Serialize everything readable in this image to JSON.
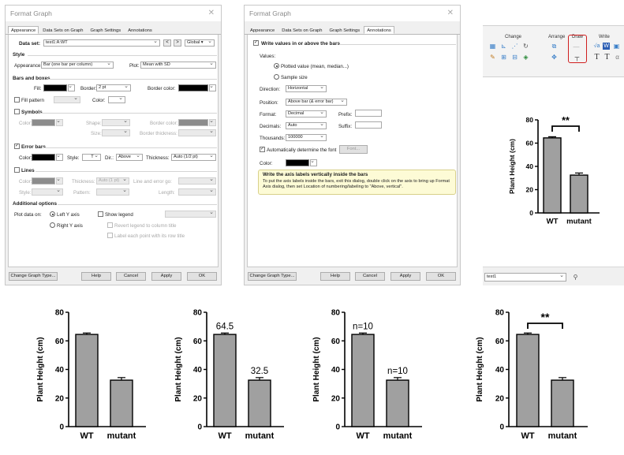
{
  "dialog1": {
    "title": "Format Graph",
    "tabs": [
      "Appearance",
      "Data Sets on Graph",
      "Graph Settings",
      "Annotations"
    ],
    "data_set_label": "Data set:",
    "data_set_value": "test1:A:WT",
    "nav_prev": "<",
    "nav_next": ">",
    "global_label": "Global ▾",
    "style_header": "Style",
    "appearance_label": "Appearance:",
    "appearance_value": "Bar (one bar per column)",
    "plot_label": "Plot:",
    "plot_value": "Mean with SD",
    "bars_header": "Bars and boxes",
    "fill_label": "Fill:",
    "border_label": "Border:",
    "border_value": "2 pt",
    "border_color_label": "Border color:",
    "fill_pattern_label": "Fill pattern",
    "color_label": "Color:",
    "symbols_label": "Symbols",
    "symbols_color_label": "Color:",
    "shape_label": "Shape:",
    "symbols_border_color_label": "Border color:",
    "size_label": "Size:",
    "border_thickness_label": "Border thickness:",
    "error_bars_label": "Error bars",
    "eb_color_label": "Color:",
    "eb_style_label": "Style:",
    "eb_style_value": "T",
    "eb_dir_label": "Dir.:",
    "eb_dir_value": "Above",
    "eb_thickness_label": "Thickness:",
    "eb_thickness_value": "Auto (1/2 pt)",
    "lines_label": "Lines",
    "lines_color_label": "Color:",
    "lines_thickness_label": "Thickness:",
    "lines_thickness_value": "Auto (1 pt)",
    "line_error_label": "Line and error go:",
    "lines_style_label": "Style:",
    "pattern_label": "Pattern:",
    "length_label": "Length:",
    "additional_header": "Additional options",
    "plot_data_on_label": "Plot data on:",
    "left_axis_label": "Left Y axis",
    "right_axis_label": "Right Y axis",
    "show_legend_label": "Show legend",
    "revert_legend_label": "Revert legend to column title",
    "label_each_point_label": "Label each point with its row title",
    "change_type_button": "Change Graph Type...",
    "help_button": "Help",
    "cancel_button": "Cancel",
    "apply_button": "Apply",
    "ok_button": "OK"
  },
  "dialog2": {
    "title": "Format Graph",
    "tabs": [
      "Appearance",
      "Data Sets on Graph",
      "Graph Settings",
      "Annotations"
    ],
    "write_values_label": "Write values in or above the bars",
    "values_label": "Values:",
    "plotted_value_label": "Plotted value (mean, median...)",
    "sample_size_label": "Sample size",
    "direction_label": "Direction:",
    "direction_value": "Horizontal",
    "position_label": "Position:",
    "position_value": "Above bar (& error bar)",
    "format_label": "Format:",
    "format_value": "Decimal",
    "prefix_label": "Prefix:",
    "decimals_label": "Decimals:",
    "decimals_value": "Auto",
    "suffix_label": "Suffix:",
    "thousands_label": "Thousands:",
    "thousands_value": "100000",
    "auto_font_label": "Automatically determine the font",
    "font_button": "Font...",
    "color_label": "Color:",
    "tip_title": "Write the axis labels vertically inside the bars",
    "tip_body": "To put the axis labels inside the bars, exit this dialog, double click on the axis to bring up Format Axis dialog, then set Location of numbering/labeling to \"Above, vertical\".",
    "change_type_button": "Change Graph Type...",
    "help_button": "Help",
    "cancel_button": "Cancel",
    "apply_button": "Apply",
    "ok_button": "OK"
  },
  "ribbon": {
    "change_label": "Change",
    "arrange_label": "Arrange",
    "draw_label": "Draw",
    "write_label": "Write",
    "sheet_select_value": "test1"
  },
  "colors": {
    "bar_fill": "#a0a0a0",
    "highlight": "#d01f1f",
    "tip_bg": "#fdfbd6"
  },
  "chart_data": [
    {
      "type": "bar",
      "categories": [
        "WT",
        "mutant"
      ],
      "values": [
        64.5,
        32.5
      ],
      "errors": [
        1.0,
        1.8
      ],
      "ylabel": "Plant Height (cm)",
      "ylim": [
        0,
        80
      ],
      "yticks": [
        "0",
        "20",
        "40",
        "60",
        "80"
      ],
      "significance": "**",
      "value_labels": []
    },
    {
      "type": "bar",
      "categories": [
        "WT",
        "mutant"
      ],
      "values": [
        64.5,
        32.5
      ],
      "errors": [
        1.0,
        1.8
      ],
      "ylabel": "Plant Height (cm)",
      "ylim": [
        0,
        80
      ],
      "yticks": [
        "0",
        "20",
        "40",
        "60",
        "80"
      ],
      "significance": "",
      "value_labels": []
    },
    {
      "type": "bar",
      "categories": [
        "WT",
        "mutant"
      ],
      "values": [
        64.5,
        32.5
      ],
      "errors": [
        1.0,
        1.8
      ],
      "ylabel": "Plant Height (cm)",
      "ylim": [
        0,
        80
      ],
      "yticks": [
        "0",
        "20",
        "40",
        "60",
        "80"
      ],
      "significance": "",
      "value_labels": [
        "64.5",
        "32.5"
      ]
    },
    {
      "type": "bar",
      "categories": [
        "WT",
        "mutant"
      ],
      "values": [
        64.5,
        32.5
      ],
      "errors": [
        1.0,
        1.8
      ],
      "ylabel": "Plant Height (cm)",
      "ylim": [
        0,
        80
      ],
      "yticks": [
        "0",
        "20",
        "40",
        "60",
        "80"
      ],
      "significance": "",
      "value_labels": [
        "n=10",
        "n=10"
      ]
    },
    {
      "type": "bar",
      "categories": [
        "WT",
        "mutant"
      ],
      "values": [
        64.5,
        32.5
      ],
      "errors": [
        1.0,
        1.8
      ],
      "ylabel": "Plant Height (cm)",
      "ylim": [
        0,
        80
      ],
      "yticks": [
        "0",
        "20",
        "40",
        "60",
        "80"
      ],
      "significance": "**",
      "value_labels": []
    }
  ]
}
